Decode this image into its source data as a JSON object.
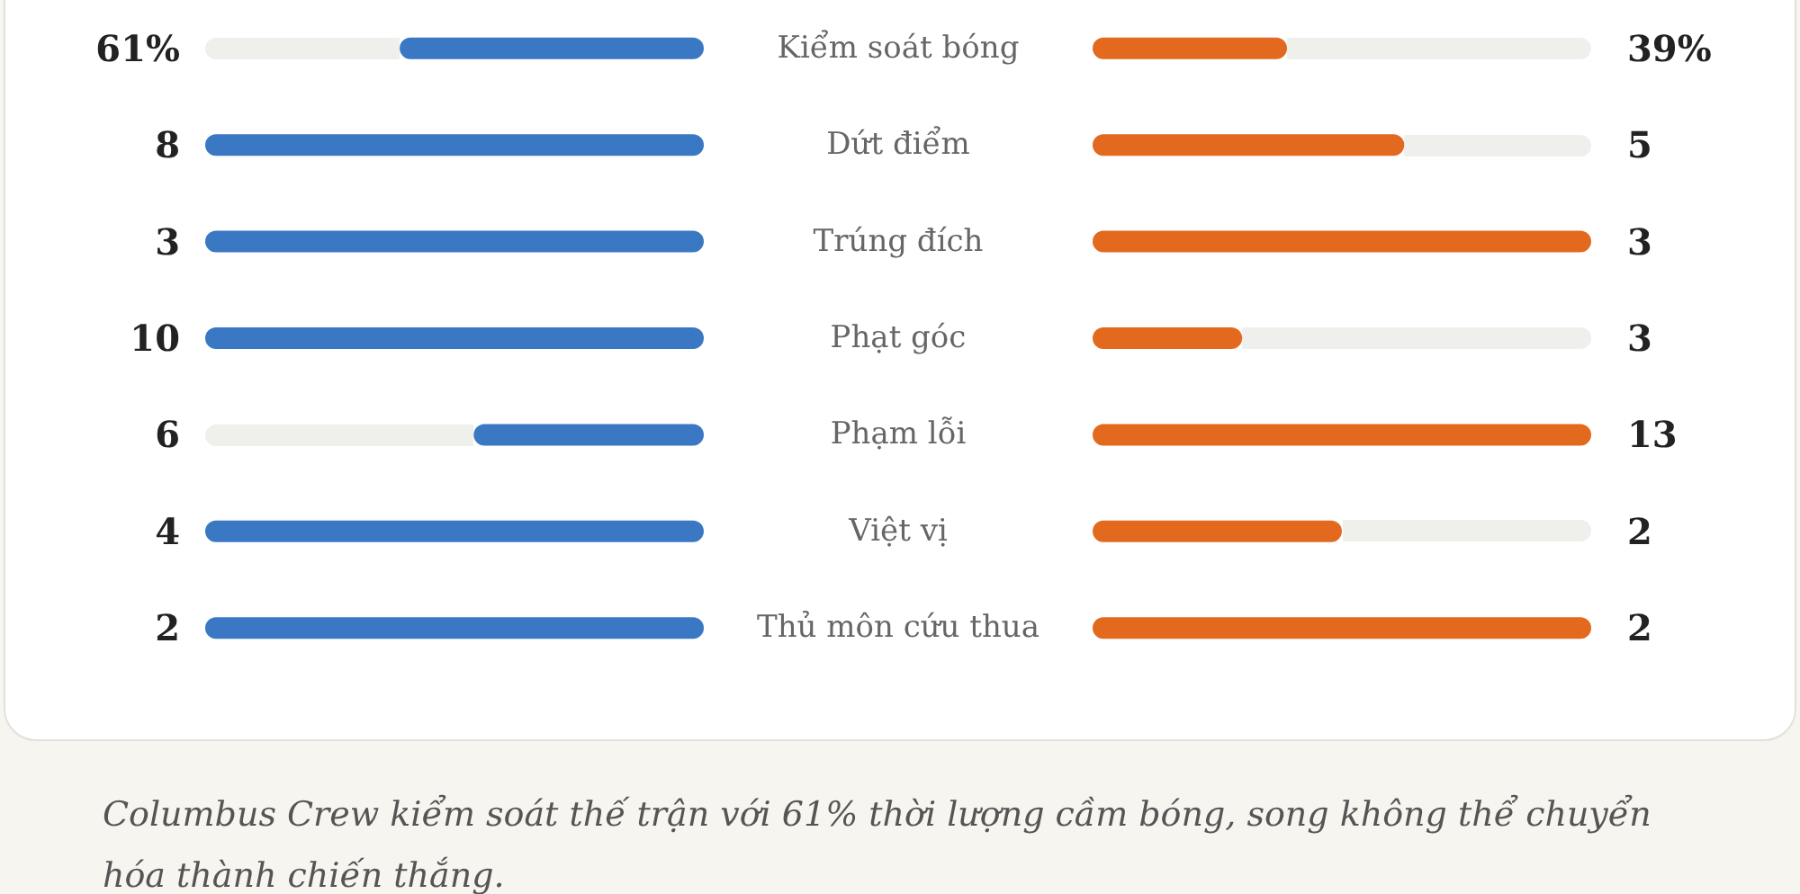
{
  "chart_data": {
    "type": "other",
    "categories": [
      "Kiểm soát bóng",
      "Dứt điểm",
      "Trúng đích",
      "Phạt góc",
      "Phạm lỗi",
      "Việt vị",
      "Thủ môn cứu thua"
    ],
    "series": [
      {
        "color": "#3a78c4",
        "values": [
          61,
          8,
          3,
          10,
          6,
          4,
          2
        ],
        "value_labels": [
          "61%",
          "8",
          "3",
          "10",
          "6",
          "4",
          "2"
        ]
      },
      {
        "color": "#e2691e",
        "values": [
          39,
          5,
          3,
          3,
          13,
          2,
          2
        ],
        "value_labels": [
          "39%",
          "5",
          "3",
          "3",
          "13",
          "2",
          "2"
        ]
      }
    ],
    "annotations": [
      "Columbus Crew kiểm soát thế trận với 61% thời lượng cầm bóng, song không thể chuyển hóa thành chiến thắng."
    ]
  }
}
